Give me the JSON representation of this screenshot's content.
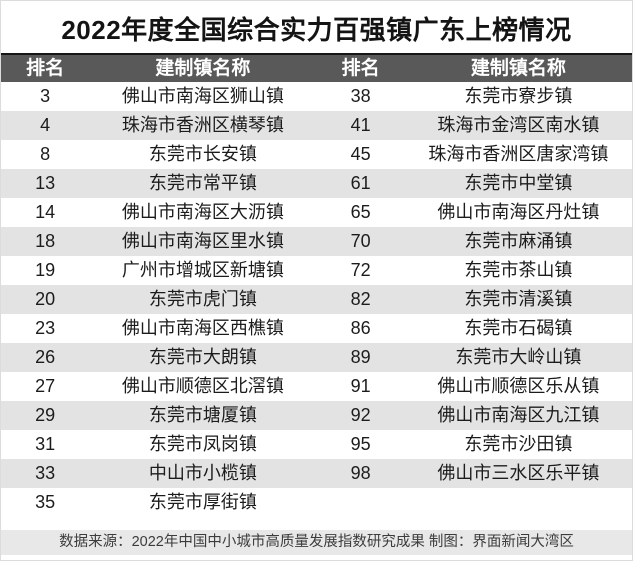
{
  "chart_data": {
    "type": "table",
    "title": "2022年度全国综合实力百强镇广东上榜情况",
    "columns": [
      "排名",
      "建制镇名称",
      "排名",
      "建制镇名称"
    ],
    "rows": [
      [
        "3",
        "佛山市南海区狮山镇",
        "38",
        "东莞市寮步镇"
      ],
      [
        "4",
        "珠海市香洲区横琴镇",
        "41",
        "珠海市金湾区南水镇"
      ],
      [
        "8",
        "东莞市长安镇",
        "45",
        "珠海市香洲区唐家湾镇"
      ],
      [
        "13",
        "东莞市常平镇",
        "61",
        "东莞市中堂镇"
      ],
      [
        "14",
        "佛山市南海区大沥镇",
        "65",
        "佛山市南海区丹灶镇"
      ],
      [
        "18",
        "佛山市南海区里水镇",
        "70",
        "东莞市麻涌镇"
      ],
      [
        "19",
        "广州市增城区新塘镇",
        "72",
        "东莞市茶山镇"
      ],
      [
        "20",
        "东莞市虎门镇",
        "82",
        "东莞市清溪镇"
      ],
      [
        "23",
        "佛山市南海区西樵镇",
        "86",
        "东莞市石碣镇"
      ],
      [
        "26",
        "东莞市大朗镇",
        "89",
        "东莞市大岭山镇"
      ],
      [
        "27",
        "佛山市顺德区北滘镇",
        "91",
        "佛山市顺德区乐从镇"
      ],
      [
        "29",
        "东莞市塘厦镇",
        "92",
        "佛山市南海区九江镇"
      ],
      [
        "31",
        "东莞市凤岗镇",
        "95",
        "东莞市沙田镇"
      ],
      [
        "33",
        "中山市小榄镇",
        "98",
        "佛山市三水区乐平镇"
      ],
      [
        "35",
        "东莞市厚街镇",
        "",
        ""
      ]
    ],
    "source_note": "数据来源：2022年中国中小城市高质量发展指数研究成果 制图：界面新闻大湾区",
    "layout": {
      "grid": false,
      "zebra_stripes": true,
      "column_pairs": 2
    }
  },
  "colors": {
    "header_bg": "#595959",
    "header_text": "#ffffff",
    "row_alt_bg": "#e3e3e3",
    "footer_bg": "#e8e8e8",
    "footer_text": "#3c3c3c",
    "title_text": "#141414"
  }
}
